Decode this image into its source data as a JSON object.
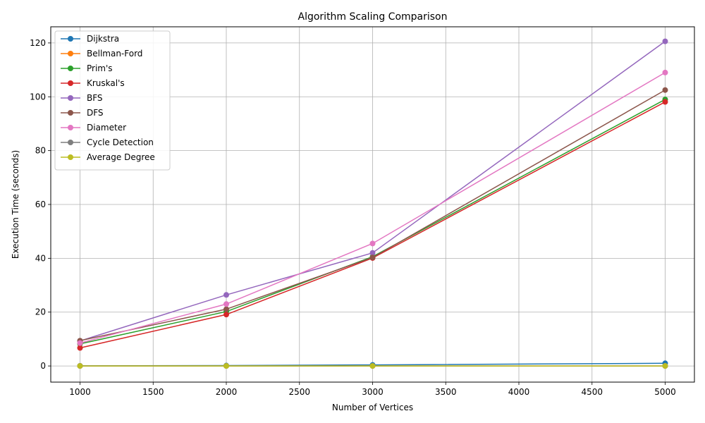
{
  "chart_data": {
    "type": "line",
    "title": "Algorithm Scaling Comparison",
    "xlabel": "Number of Vertices",
    "ylabel": "Execution Time (seconds)",
    "x": [
      1000,
      2000,
      3000,
      5000
    ],
    "xlim": [
      800,
      5200
    ],
    "ylim": [
      -6,
      126
    ],
    "xticks": [
      1000,
      1500,
      2000,
      2500,
      3000,
      3500,
      4000,
      4500,
      5000
    ],
    "yticks": [
      0,
      20,
      40,
      60,
      80,
      100,
      120
    ],
    "grid": true,
    "legend_position": "upper-left",
    "series": [
      {
        "name": "Dijkstra",
        "color": "#1f77b4",
        "values": [
          0.05,
          0.15,
          0.4,
          1.0
        ]
      },
      {
        "name": "Bellman-Ford",
        "color": "#ff7f0e",
        "values": [
          0.0,
          0.0,
          0.0,
          0.0
        ]
      },
      {
        "name": "Prim's",
        "color": "#2ca02c",
        "values": [
          8.2,
          20.2,
          40.6,
          99.0
        ]
      },
      {
        "name": "Kruskal's",
        "color": "#d62728",
        "values": [
          6.7,
          19.1,
          40.1,
          98.1
        ]
      },
      {
        "name": "BFS",
        "color": "#9467bd",
        "values": [
          9.3,
          26.4,
          42.0,
          120.6
        ]
      },
      {
        "name": "DFS",
        "color": "#8c564b",
        "values": [
          9.4,
          21.1,
          40.3,
          102.5
        ]
      },
      {
        "name": "Diameter",
        "color": "#e377c2",
        "values": [
          8.5,
          23.0,
          45.5,
          109.0
        ]
      },
      {
        "name": "Cycle Detection",
        "color": "#7f7f7f",
        "values": [
          0.0,
          0.0,
          0.0,
          0.0
        ]
      },
      {
        "name": "Average Degree",
        "color": "#bcbd22",
        "values": [
          0.0,
          0.0,
          0.0,
          0.0
        ]
      }
    ]
  }
}
